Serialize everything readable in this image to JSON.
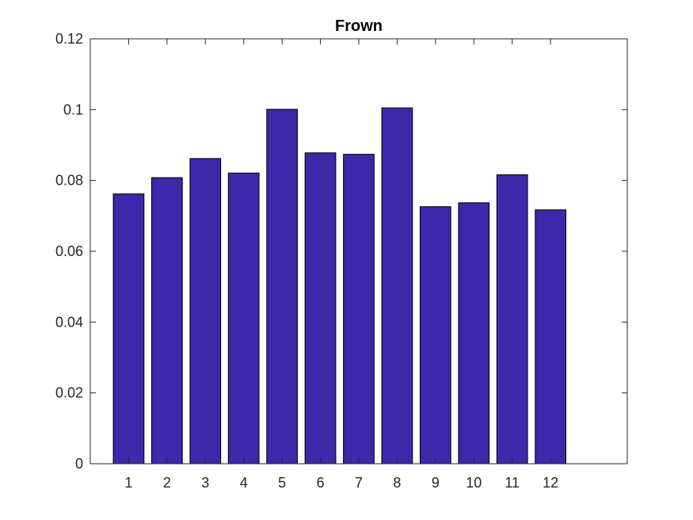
{
  "chart_data": {
    "type": "bar",
    "title": "Frown",
    "xlabel": "",
    "ylabel": "",
    "categories": [
      "1",
      "2",
      "3",
      "4",
      "5",
      "6",
      "7",
      "8",
      "9",
      "10",
      "11",
      "12"
    ],
    "values": [
      0.0762,
      0.0808,
      0.0862,
      0.0821,
      0.1001,
      0.0878,
      0.0874,
      0.1005,
      0.0726,
      0.0737,
      0.0816,
      0.0717
    ],
    "xlim": [
      0,
      14
    ],
    "ylim": [
      0,
      0.12
    ],
    "yticks": [
      "0",
      "0.02",
      "0.04",
      "0.06",
      "0.08",
      "0.1",
      "0.12"
    ],
    "ytick_values": [
      0,
      0.02,
      0.04,
      0.06,
      0.08,
      0.1,
      0.12
    ],
    "bar_color": "#3C28A8",
    "grid": false,
    "legend": "none"
  }
}
